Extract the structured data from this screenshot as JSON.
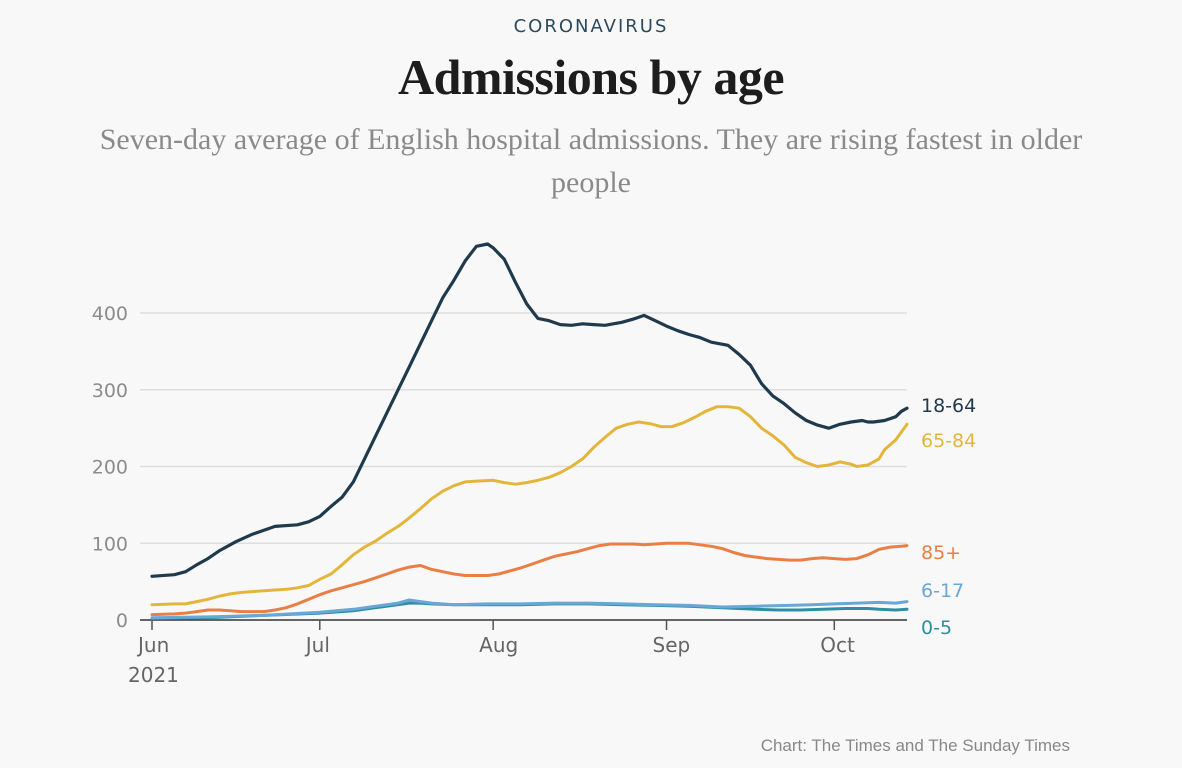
{
  "header": {
    "kicker": "CORONAVIRUS",
    "title": "Admissions by age",
    "subtitle": "Seven-day average of English hospital admissions. They are rising fastest in older people"
  },
  "footer": {
    "source": "Chart: The Times and The Sunday Times"
  },
  "chart_data": {
    "type": "line",
    "title": "Admissions by age",
    "subtitle": "Seven-day average of English hospital admissions. They are rising fastest in older people",
    "xlabel": "",
    "ylabel": "",
    "x_ticks": [
      {
        "label": "Jun",
        "sublabel": "2021",
        "day": 0
      },
      {
        "label": "Jul",
        "day": 30
      },
      {
        "label": "Aug",
        "day": 61
      },
      {
        "label": "Sep",
        "day": 92
      },
      {
        "label": "Oct",
        "day": 122
      }
    ],
    "xlim": [
      "2021-06-01",
      "2021-10-14"
    ],
    "y_ticks": [
      0,
      100,
      200,
      300,
      400
    ],
    "ylim": [
      0,
      490
    ],
    "grid": true,
    "legend": "labels at line ends (right)",
    "series": [
      {
        "name": "18-64",
        "color": "#1f3a4d",
        "points": [
          [
            0,
            57
          ],
          [
            4,
            59
          ],
          [
            6,
            63
          ],
          [
            8,
            72
          ],
          [
            10,
            80
          ],
          [
            12,
            90
          ],
          [
            15,
            102
          ],
          [
            18,
            112
          ],
          [
            20,
            117
          ],
          [
            22,
            122
          ],
          [
            26,
            124
          ],
          [
            28,
            128
          ],
          [
            30,
            135
          ],
          [
            32,
            148
          ],
          [
            34,
            160
          ],
          [
            36,
            180
          ],
          [
            38,
            210
          ],
          [
            40,
            240
          ],
          [
            42,
            270
          ],
          [
            44,
            300
          ],
          [
            46,
            330
          ],
          [
            48,
            360
          ],
          [
            50,
            390
          ],
          [
            52,
            420
          ],
          [
            54,
            443
          ],
          [
            56,
            468
          ],
          [
            58,
            487
          ],
          [
            60,
            490
          ],
          [
            61,
            485
          ],
          [
            63,
            470
          ],
          [
            65,
            440
          ],
          [
            67,
            412
          ],
          [
            69,
            393
          ],
          [
            71,
            390
          ],
          [
            73,
            385
          ],
          [
            75,
            384
          ],
          [
            77,
            386
          ],
          [
            79,
            385
          ],
          [
            81,
            384
          ],
          [
            84,
            388
          ],
          [
            86,
            392
          ],
          [
            88,
            397
          ],
          [
            90,
            390
          ],
          [
            92,
            383
          ],
          [
            94,
            377
          ],
          [
            96,
            372
          ],
          [
            98,
            368
          ],
          [
            100,
            362
          ],
          [
            103,
            358
          ],
          [
            105,
            346
          ],
          [
            107,
            332
          ],
          [
            109,
            308
          ],
          [
            111,
            292
          ],
          [
            113,
            282
          ],
          [
            115,
            270
          ],
          [
            117,
            260
          ],
          [
            119,
            254
          ],
          [
            121,
            250
          ],
          [
            123,
            255
          ],
          [
            125,
            258
          ],
          [
            127,
            260
          ],
          [
            128,
            258
          ],
          [
            129,
            258
          ],
          [
            131,
            260
          ],
          [
            133,
            265
          ],
          [
            134,
            272
          ],
          [
            135,
            276
          ]
        ]
      },
      {
        "name": "65-84",
        "color": "#e3b63b",
        "points": [
          [
            0,
            20
          ],
          [
            4,
            21
          ],
          [
            6,
            21
          ],
          [
            8,
            24
          ],
          [
            10,
            27
          ],
          [
            12,
            31
          ],
          [
            14,
            34
          ],
          [
            16,
            36
          ],
          [
            18,
            37
          ],
          [
            20,
            38
          ],
          [
            24,
            40
          ],
          [
            26,
            42
          ],
          [
            28,
            45
          ],
          [
            30,
            53
          ],
          [
            32,
            60
          ],
          [
            34,
            72
          ],
          [
            36,
            85
          ],
          [
            38,
            95
          ],
          [
            40,
            103
          ],
          [
            42,
            113
          ],
          [
            44,
            122
          ],
          [
            46,
            133
          ],
          [
            48,
            145
          ],
          [
            50,
            158
          ],
          [
            52,
            168
          ],
          [
            54,
            175
          ],
          [
            56,
            180
          ],
          [
            58,
            181
          ],
          [
            61,
            182
          ],
          [
            63,
            179
          ],
          [
            65,
            177
          ],
          [
            67,
            179
          ],
          [
            69,
            182
          ],
          [
            71,
            186
          ],
          [
            73,
            192
          ],
          [
            75,
            200
          ],
          [
            77,
            210
          ],
          [
            79,
            225
          ],
          [
            81,
            238
          ],
          [
            83,
            250
          ],
          [
            85,
            255
          ],
          [
            87,
            258
          ],
          [
            89,
            256
          ],
          [
            91,
            252
          ],
          [
            93,
            252
          ],
          [
            95,
            257
          ],
          [
            97,
            264
          ],
          [
            99,
            272
          ],
          [
            101,
            278
          ],
          [
            103,
            278
          ],
          [
            105,
            276
          ],
          [
            107,
            265
          ],
          [
            109,
            250
          ],
          [
            111,
            240
          ],
          [
            113,
            228
          ],
          [
            115,
            212
          ],
          [
            117,
            205
          ],
          [
            119,
            200
          ],
          [
            121,
            202
          ],
          [
            123,
            206
          ],
          [
            125,
            203
          ],
          [
            126,
            200
          ],
          [
            128,
            202
          ],
          [
            130,
            210
          ],
          [
            131,
            222
          ],
          [
            133,
            235
          ],
          [
            135,
            255
          ]
        ]
      },
      {
        "name": "85+",
        "color": "#e97f45",
        "points": [
          [
            0,
            7
          ],
          [
            4,
            8
          ],
          [
            6,
            9
          ],
          [
            8,
            11
          ],
          [
            10,
            13
          ],
          [
            12,
            13
          ],
          [
            14,
            12
          ],
          [
            16,
            11
          ],
          [
            18,
            11
          ],
          [
            20,
            11
          ],
          [
            22,
            13
          ],
          [
            24,
            16
          ],
          [
            26,
            21
          ],
          [
            28,
            27
          ],
          [
            30,
            33
          ],
          [
            32,
            38
          ],
          [
            34,
            42
          ],
          [
            36,
            46
          ],
          [
            38,
            50
          ],
          [
            40,
            55
          ],
          [
            42,
            60
          ],
          [
            44,
            65
          ],
          [
            46,
            69
          ],
          [
            48,
            71
          ],
          [
            50,
            66
          ],
          [
            52,
            63
          ],
          [
            54,
            60
          ],
          [
            56,
            58
          ],
          [
            58,
            58
          ],
          [
            60,
            58
          ],
          [
            62,
            60
          ],
          [
            64,
            64
          ],
          [
            66,
            68
          ],
          [
            68,
            73
          ],
          [
            70,
            78
          ],
          [
            72,
            83
          ],
          [
            74,
            86
          ],
          [
            76,
            89
          ],
          [
            78,
            93
          ],
          [
            80,
            97
          ],
          [
            82,
            99
          ],
          [
            84,
            99
          ],
          [
            86,
            99
          ],
          [
            88,
            98
          ],
          [
            90,
            99
          ],
          [
            92,
            100
          ],
          [
            94,
            100
          ],
          [
            96,
            100
          ],
          [
            98,
            98
          ],
          [
            100,
            96
          ],
          [
            102,
            93
          ],
          [
            104,
            88
          ],
          [
            106,
            84
          ],
          [
            108,
            82
          ],
          [
            110,
            80
          ],
          [
            112,
            79
          ],
          [
            114,
            78
          ],
          [
            116,
            78
          ],
          [
            118,
            80
          ],
          [
            120,
            81
          ],
          [
            122,
            80
          ],
          [
            124,
            79
          ],
          [
            126,
            80
          ],
          [
            128,
            85
          ],
          [
            130,
            92
          ],
          [
            132,
            95
          ],
          [
            134,
            96
          ],
          [
            135,
            97
          ]
        ]
      },
      {
        "name": "6-17",
        "color": "#6aa6d6",
        "points": [
          [
            0,
            3
          ],
          [
            10,
            4
          ],
          [
            20,
            6
          ],
          [
            30,
            10
          ],
          [
            36,
            14
          ],
          [
            40,
            18
          ],
          [
            44,
            22
          ],
          [
            46,
            26
          ],
          [
            48,
            24
          ],
          [
            50,
            22
          ],
          [
            54,
            20
          ],
          [
            60,
            21
          ],
          [
            66,
            21
          ],
          [
            72,
            22
          ],
          [
            78,
            22
          ],
          [
            84,
            21
          ],
          [
            90,
            20
          ],
          [
            96,
            19
          ],
          [
            102,
            17
          ],
          [
            108,
            18
          ],
          [
            114,
            19
          ],
          [
            118,
            20
          ],
          [
            122,
            21
          ],
          [
            126,
            22
          ],
          [
            130,
            23
          ],
          [
            133,
            22
          ],
          [
            135,
            24
          ]
        ]
      },
      {
        "name": "0-5",
        "color": "#2e8fa3",
        "points": [
          [
            0,
            2
          ],
          [
            10,
            3
          ],
          [
            20,
            6
          ],
          [
            30,
            9
          ],
          [
            36,
            12
          ],
          [
            40,
            16
          ],
          [
            44,
            20
          ],
          [
            46,
            22
          ],
          [
            48,
            22
          ],
          [
            50,
            21
          ],
          [
            54,
            20
          ],
          [
            60,
            20
          ],
          [
            66,
            20
          ],
          [
            72,
            21
          ],
          [
            78,
            21
          ],
          [
            84,
            20
          ],
          [
            90,
            19
          ],
          [
            96,
            18
          ],
          [
            102,
            16
          ],
          [
            108,
            14
          ],
          [
            112,
            13
          ],
          [
            116,
            13
          ],
          [
            120,
            14
          ],
          [
            124,
            15
          ],
          [
            128,
            15
          ],
          [
            130,
            14
          ],
          [
            133,
            13
          ],
          [
            135,
            14
          ]
        ]
      }
    ]
  }
}
